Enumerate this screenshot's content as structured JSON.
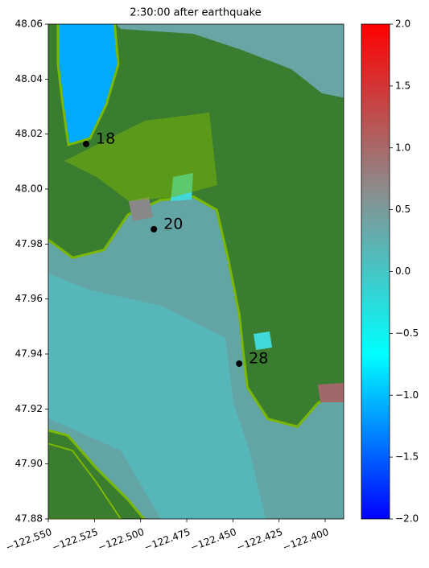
{
  "chart_data": {
    "type": "scatter",
    "title": "2:30:00 after earthquake",
    "x": [
      -122.5295,
      -122.4928,
      -122.4466
    ],
    "values": [
      48.0164,
      47.9854,
      47.9365
    ],
    "point_labels": [
      "18",
      "20",
      "28"
    ],
    "color": "#000000",
    "xlim": [
      -122.55,
      -122.39
    ],
    "ylim": [
      47.88,
      48.06
    ],
    "xticks": [
      {
        "value": -122.55,
        "label": "−122.550"
      },
      {
        "value": -122.525,
        "label": "−122.525"
      },
      {
        "value": -122.5,
        "label": "−122.500"
      },
      {
        "value": -122.475,
        "label": "−122.475"
      },
      {
        "value": -122.45,
        "label": "−122.450"
      },
      {
        "value": -122.425,
        "label": "−122.425"
      },
      {
        "value": -122.4,
        "label": "−122.400"
      }
    ],
    "yticks": [
      48.06,
      48.04,
      48.02,
      {
        "value": 48.0,
        "label": "48.00"
      },
      47.98,
      47.96,
      47.94,
      47.92,
      {
        "value": 47.9,
        "label": "47.90"
      },
      47.88
    ],
    "colorbar": {
      "lim": [
        -2,
        2
      ],
      "ticks": [
        {
          "value": -2,
          "label": "−2.0"
        },
        {
          "value": -1.5,
          "label": "−1.5"
        },
        {
          "value": -1,
          "label": "−1.0"
        },
        {
          "value": -0.5,
          "label": "−0.5"
        },
        {
          "value": 0,
          "label": "0.0"
        },
        0.5,
        {
          "value": 1,
          "label": "1.0"
        },
        1.5,
        {
          "value": 2,
          "label": "2.0"
        }
      ],
      "colors": [
        "#0000ff",
        "#00ffff",
        "#8c8c8c",
        "#ff0000"
      ]
    }
  }
}
